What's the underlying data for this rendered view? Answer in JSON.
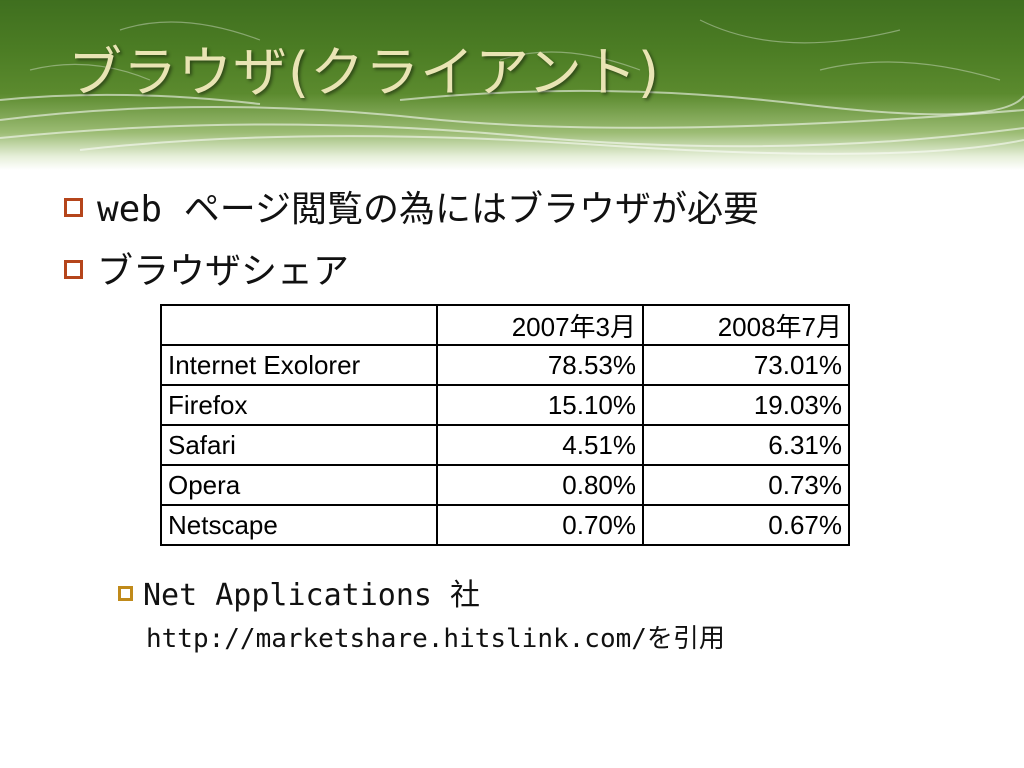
{
  "slide": {
    "title": "ブラウザ(クライアント)",
    "bullets": [
      {
        "prefix": "web ",
        "text": "ページ閲覧の為にはブラウザが必要"
      },
      {
        "text": "ブラウザシェア"
      }
    ],
    "table": {
      "headers": [
        "",
        "2007年3月",
        "2008年7月"
      ],
      "rows": [
        [
          "Internet Exolorer",
          "78.53%",
          "73.01%"
        ],
        [
          "Firefox",
          "15.10%",
          "19.03%"
        ],
        [
          "Safari",
          "4.51%",
          "6.31%"
        ],
        [
          "Opera",
          "0.80%",
          "0.73%"
        ],
        [
          "Netscape",
          "0.70%",
          "0.67%"
        ]
      ]
    },
    "source": {
      "text": "Net Applications 社",
      "url": "http://marketshare.hitslink.com/",
      "suffix": "を引用"
    }
  },
  "colors": {
    "bullet_mark": "#b5451b",
    "sub_bullet_mark": "#c08a1a",
    "title_text": "#e9e4b4",
    "header_green": "#4c7d24"
  }
}
